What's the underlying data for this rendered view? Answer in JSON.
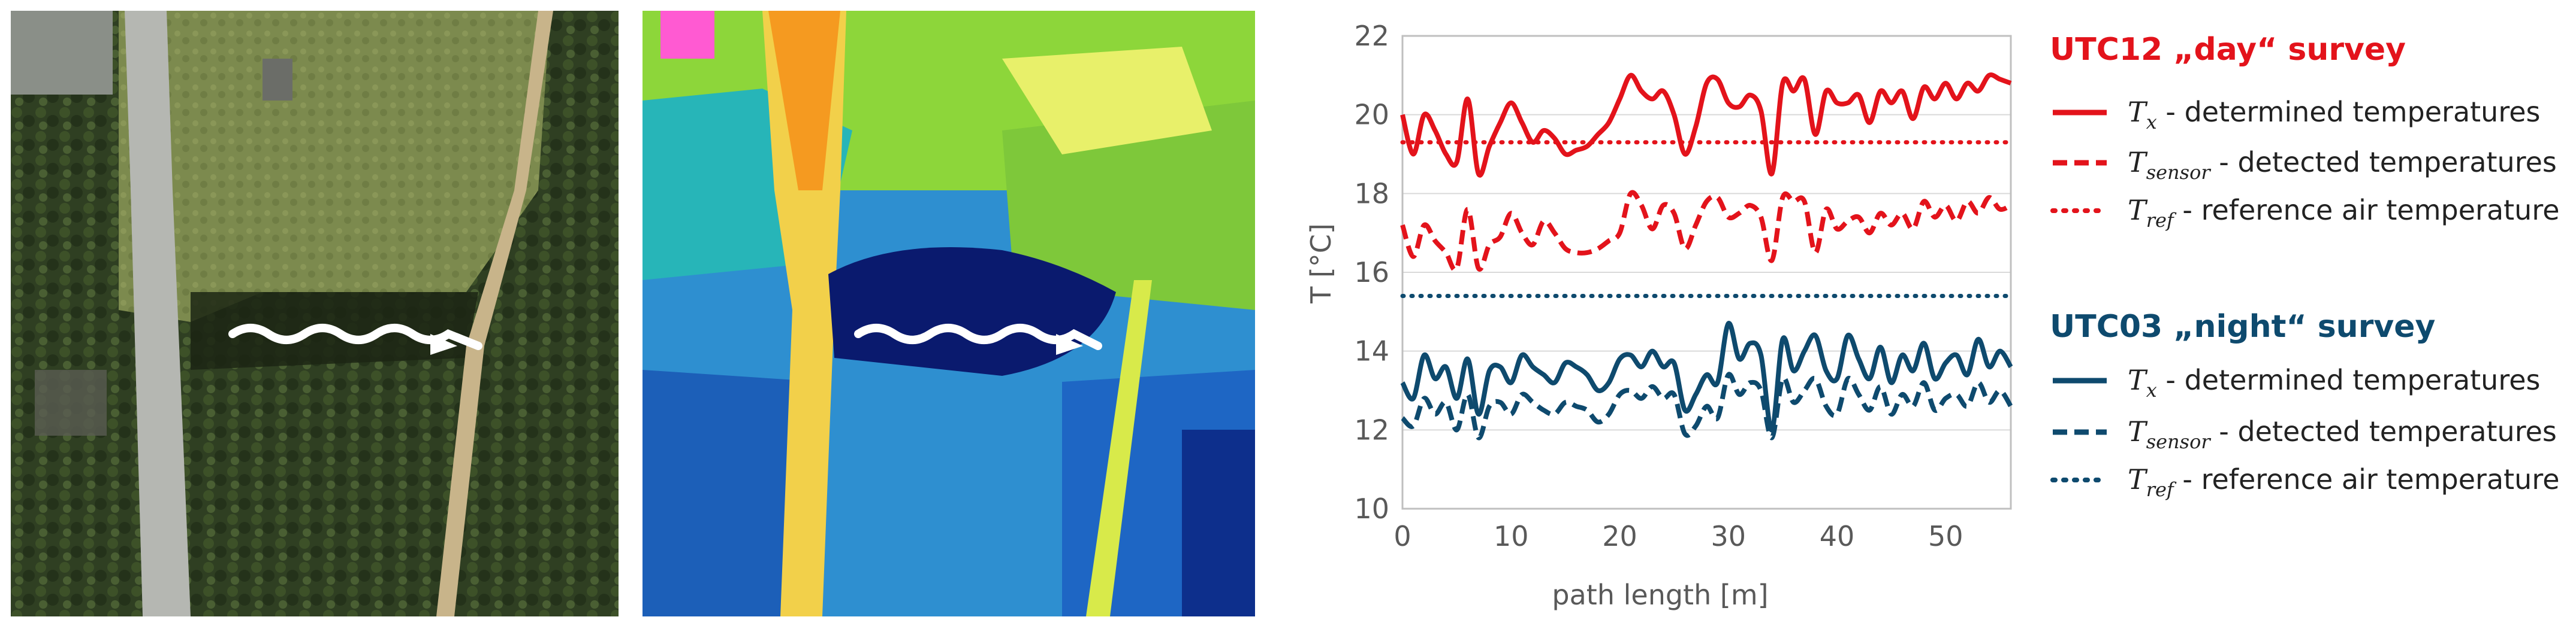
{
  "colors": {
    "day": "#e3131b",
    "night": "#0e4a6e",
    "grid": "#d9d9d9",
    "axis_text": "#595959"
  },
  "images": {
    "aerial": {
      "description_icon": "aerial-photo-icon"
    },
    "thermal": {
      "description_icon": "thermal-image-icon"
    }
  },
  "legend": {
    "day_heading": "UTC12 „day“ survey",
    "night_heading": "UTC03 „night“ survey",
    "tx_symbol": "T",
    "tx_sub": "x",
    "tx_text": " - determined temperatures",
    "ts_symbol": "T",
    "ts_sub": "sensor",
    "ts_text": " - detected temperatures",
    "tr_symbol": "T",
    "tr_sub": "ref",
    "tr_text": " - reference air temperature"
  },
  "chart_data": {
    "type": "line",
    "xlabel": "path length [m]",
    "ylabel": "T [°C]",
    "xlim": [
      0,
      56
    ],
    "ylim": [
      10,
      22
    ],
    "xticks": [
      0,
      10,
      20,
      30,
      40,
      50
    ],
    "yticks": [
      10,
      12,
      14,
      16,
      18,
      20,
      22
    ],
    "grid": true,
    "x": [
      0,
      1,
      2,
      3,
      4,
      5,
      6,
      7,
      8,
      9,
      10,
      11,
      12,
      13,
      14,
      15,
      16,
      17,
      18,
      19,
      20,
      21,
      22,
      23,
      24,
      25,
      26,
      27,
      28,
      29,
      30,
      31,
      32,
      33,
      34,
      35,
      36,
      37,
      38,
      39,
      40,
      41,
      42,
      43,
      44,
      45,
      46,
      47,
      48,
      49,
      50,
      51,
      52,
      53,
      54,
      55,
      56
    ],
    "series": [
      {
        "name": "UTC12 Tx - determined temperatures",
        "group": "day",
        "style": "solid",
        "values": [
          20.0,
          19.0,
          20.0,
          19.6,
          19.0,
          18.8,
          20.4,
          18.5,
          19.2,
          19.8,
          20.3,
          19.8,
          19.3,
          19.6,
          19.4,
          19.0,
          19.1,
          19.2,
          19.5,
          19.8,
          20.4,
          21.0,
          20.6,
          20.4,
          20.6,
          20.0,
          19.0,
          19.7,
          20.8,
          20.9,
          20.3,
          20.2,
          20.5,
          20.1,
          18.5,
          20.8,
          20.6,
          20.9,
          19.5,
          20.6,
          20.3,
          20.3,
          20.5,
          19.8,
          20.6,
          20.3,
          20.6,
          19.9,
          20.7,
          20.4,
          20.8,
          20.4,
          20.8,
          20.6,
          21.0,
          20.9,
          20.8
        ]
      },
      {
        "name": "UTC12 Tsensor - detected temperatures",
        "group": "day",
        "style": "dashed",
        "values": [
          17.2,
          16.4,
          17.2,
          16.8,
          16.5,
          16.1,
          17.6,
          16.1,
          16.7,
          16.9,
          17.5,
          17.0,
          16.7,
          17.3,
          17.0,
          16.6,
          16.5,
          16.5,
          16.6,
          16.8,
          17.0,
          18.0,
          17.7,
          17.1,
          17.7,
          17.5,
          16.6,
          17.2,
          17.8,
          17.9,
          17.4,
          17.5,
          17.7,
          17.4,
          16.3,
          17.9,
          17.8,
          17.8,
          16.5,
          17.6,
          17.1,
          17.3,
          17.4,
          17.0,
          17.5,
          17.2,
          17.5,
          17.1,
          17.8,
          17.4,
          17.7,
          17.3,
          17.8,
          17.5,
          17.9,
          17.6,
          17.7
        ]
      },
      {
        "name": "UTC12 Tref - reference air temperature",
        "group": "day",
        "style": "dotted",
        "constant": 19.3
      },
      {
        "name": "UTC03 Tx - determined temperatures",
        "group": "night",
        "style": "solid",
        "values": [
          13.2,
          12.8,
          13.9,
          13.3,
          13.6,
          12.8,
          13.8,
          12.4,
          13.5,
          13.6,
          13.2,
          13.9,
          13.6,
          13.4,
          13.2,
          13.7,
          13.6,
          13.4,
          13.0,
          13.2,
          13.8,
          13.9,
          13.6,
          14.0,
          13.6,
          13.7,
          12.5,
          12.9,
          13.4,
          13.2,
          14.7,
          13.8,
          14.2,
          13.9,
          12.0,
          14.3,
          13.5,
          14.0,
          14.4,
          13.5,
          13.3,
          14.4,
          13.8,
          13.3,
          14.1,
          13.2,
          13.9,
          13.5,
          14.2,
          13.3,
          13.7,
          13.9,
          13.4,
          14.3,
          13.6,
          14.0,
          13.6
        ]
      },
      {
        "name": "UTC03 Tsensor - detected temperatures",
        "group": "night",
        "style": "dashed",
        "values": [
          12.3,
          12.1,
          12.8,
          12.4,
          12.7,
          12.0,
          12.9,
          11.8,
          12.6,
          12.7,
          12.4,
          12.9,
          12.7,
          12.5,
          12.4,
          12.7,
          12.6,
          12.5,
          12.2,
          12.4,
          12.9,
          13.0,
          12.8,
          13.1,
          12.8,
          12.9,
          11.9,
          12.1,
          12.6,
          12.3,
          13.4,
          12.9,
          13.2,
          13.0,
          11.8,
          13.3,
          12.7,
          13.0,
          13.3,
          12.6,
          12.4,
          13.3,
          12.9,
          12.5,
          13.1,
          12.4,
          12.9,
          12.6,
          13.2,
          12.5,
          12.8,
          12.9,
          12.6,
          13.2,
          12.7,
          13.0,
          12.6
        ]
      },
      {
        "name": "UTC03 Tref - reference air temperature",
        "group": "night",
        "style": "dotted",
        "constant": 15.4
      }
    ]
  }
}
